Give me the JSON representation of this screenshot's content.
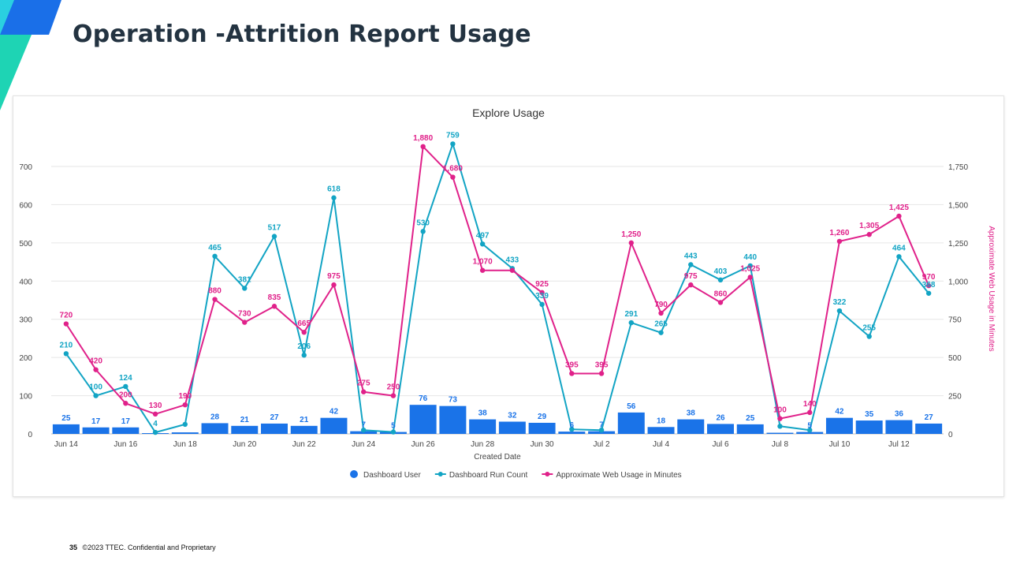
{
  "slide": {
    "title": "Operation -Attrition Report Usage",
    "footer_page": "35",
    "footer_text": "©2023 TTEC. Confidential and Proprietary"
  },
  "colors": {
    "title": "#233341",
    "bar": "#1a73e8",
    "run_count": "#12a4c4",
    "web_usage": "#e0218a",
    "accent_teal": "#1ed4b4",
    "accent_blue": "#1a6fe8"
  },
  "chart_data": {
    "type": "bar",
    "title": "Explore Usage",
    "xlabel": "Created Date",
    "ylabel": "",
    "y2label": "Approximate Web Usage in Minutes",
    "categories": [
      "Jun 14",
      "Jun 15",
      "Jun 16",
      "Jun 17",
      "Jun 18",
      "Jun 19",
      "Jun 20",
      "Jun 21",
      "Jun 22",
      "Jun 23",
      "Jun 24",
      "Jun 25",
      "Jun 26",
      "Jun 27",
      "Jun 28",
      "Jun 29",
      "Jun 30",
      "Jul 1",
      "Jul 2",
      "Jul 3",
      "Jul 4",
      "Jul 5",
      "Jul 6",
      "Jul 7",
      "Jul 8",
      "Jul 9",
      "Jul 10",
      "Jul 11",
      "Jul 12",
      "Jul 13"
    ],
    "xticks": [
      "Jun 14",
      "Jun 16",
      "Jun 18",
      "Jun 20",
      "Jun 22",
      "Jun 24",
      "Jun 26",
      "Jun 28",
      "Jun 30",
      "Jul 2",
      "Jul 4",
      "Jul 6",
      "Jul 8",
      "Jul 10",
      "Jul 12"
    ],
    "ylim": [
      0,
      700
    ],
    "yticks": [
      0,
      100,
      200,
      300,
      400,
      500,
      600,
      700
    ],
    "y2lim": [
      0,
      1750
    ],
    "y2ticks": [
      0,
      250,
      500,
      750,
      1000,
      1250,
      1500,
      1750
    ],
    "y2tick_labels": [
      "0",
      "250",
      "500",
      "750",
      "1,000",
      "1,250",
      "1,500",
      "1,750"
    ],
    "legend_position": "bottom",
    "grid": true,
    "series": [
      {
        "name": "Dashboard User",
        "kind": "bar",
        "axis": "left",
        "values": [
          25,
          17,
          17,
          2,
          4,
          28,
          21,
          27,
          21,
          42,
          7,
          5,
          76,
          73,
          38,
          32,
          29,
          6,
          7,
          56,
          18,
          38,
          26,
          25,
          3,
          5,
          42,
          35,
          36,
          27
        ],
        "labels": [
          "25",
          "17",
          "17",
          "",
          "",
          "28",
          "21",
          "27",
          "21",
          "42",
          "7",
          "5",
          "76",
          "73",
          "38",
          "32",
          "29",
          "6",
          "7",
          "56",
          "18",
          "38",
          "26",
          "25",
          "",
          "5",
          "42",
          "35",
          "36",
          "27"
        ]
      },
      {
        "name": "Dashboard Run Count",
        "kind": "line",
        "axis": "left",
        "values": [
          210,
          100,
          124,
          4,
          25,
          465,
          381,
          517,
          206,
          618,
          10,
          5,
          530,
          759,
          497,
          433,
          339,
          12,
          10,
          291,
          265,
          443,
          403,
          440,
          20,
          10,
          322,
          255,
          464,
          368
        ],
        "labels": [
          "210",
          "100",
          "124",
          "4",
          "",
          "465",
          "381",
          "517",
          "206",
          "618",
          "",
          "",
          "530",
          "759",
          "497",
          "433",
          "339",
          "",
          "",
          "291",
          "265",
          "443",
          "403",
          "440",
          "",
          "",
          "322",
          "255",
          "464",
          "368"
        ]
      },
      {
        "name": "Approximate Web Usage in Minutes",
        "kind": "line",
        "axis": "right",
        "values": [
          720,
          420,
          200,
          130,
          190,
          880,
          730,
          835,
          665,
          975,
          275,
          250,
          1880,
          1680,
          1070,
          1070,
          925,
          395,
          395,
          1250,
          790,
          975,
          860,
          1025,
          100,
          140,
          1260,
          1305,
          1425,
          970
        ],
        "labels": [
          "720",
          "420",
          "200",
          "130",
          "190",
          "880",
          "730",
          "835",
          "665",
          "975",
          "275",
          "250",
          "1,880",
          "1,680",
          "1,070",
          "",
          "925",
          "395",
          "395",
          "1,250",
          "790",
          "975",
          "860",
          "1,025",
          "100",
          "140",
          "1,260",
          "1,305",
          "1,425",
          "970"
        ]
      }
    ]
  }
}
